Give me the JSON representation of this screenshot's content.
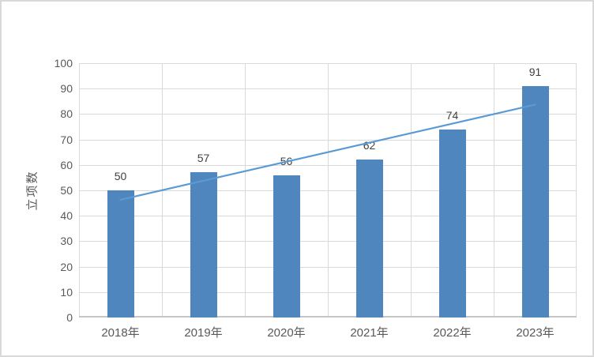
{
  "chart_data": {
    "type": "bar",
    "title": "",
    "categories": [
      "2018年",
      "2019年",
      "2020年",
      "2021年",
      "2022年",
      "2023年"
    ],
    "values": [
      50,
      57,
      56,
      62,
      74,
      91
    ],
    "xlabel": "",
    "ylabel": "立项数",
    "ylim": [
      0,
      100
    ],
    "yticks": [
      0,
      10,
      20,
      30,
      40,
      50,
      60,
      70,
      80,
      90,
      100
    ],
    "grid": true,
    "legend": "none",
    "trendline": {
      "type": "linear"
    },
    "colors": {
      "bar": "#4F86BE",
      "trendline": "#5B9BD5",
      "gridline": "#D9D9D9",
      "axis_line": "#C6C6C6",
      "tick_text": "#595959",
      "data_label_text": "#404040",
      "frame_border": "#D9D9D9",
      "background": "#FFFFFF"
    }
  }
}
